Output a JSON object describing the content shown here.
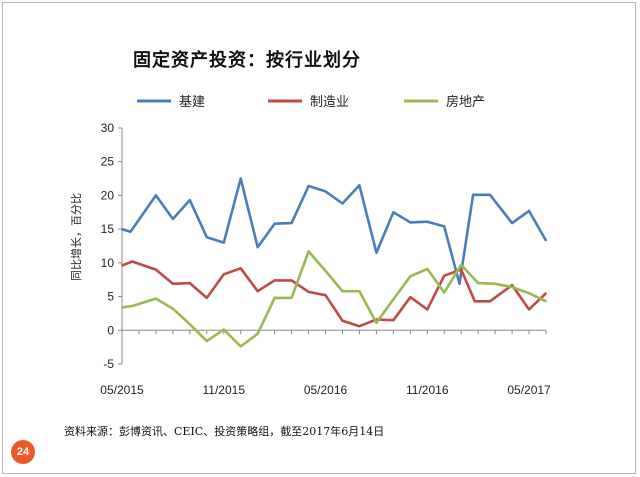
{
  "page_number": "24",
  "source_note": "资料来源：彭博资讯、CEIC、投资策略组，截至2017年6月14日",
  "colors": {
    "badge": "#e9592c",
    "axis": "#888888"
  },
  "chart_data": {
    "type": "line",
    "title": "固定资产投资：按行业划分",
    "ylabel": "同比增长，百分比",
    "xlabel": "",
    "ylim": [
      -5,
      30
    ],
    "yticks": [
      -5,
      0,
      5,
      10,
      15,
      20,
      25,
      30
    ],
    "x": [
      "05/2015",
      "06/2015",
      "07/2015",
      "08/2015",
      "09/2015",
      "10/2015",
      "11/2015",
      "12/2015",
      "01/2016",
      "02/2016",
      "03/2016",
      "04/2016",
      "05/2016",
      "06/2016",
      "07/2016",
      "08/2016",
      "09/2016",
      "10/2016",
      "11/2016",
      "12/2016",
      "01/2017",
      "02/2017",
      "03/2017",
      "04/2017",
      "05/2017"
    ],
    "xtick_labels": [
      {
        "index": 0,
        "label": "05/2015"
      },
      {
        "index": 6,
        "label": "11/2015"
      },
      {
        "index": 12,
        "label": "05/2016"
      },
      {
        "index": 18,
        "label": "11/2016"
      },
      {
        "index": 24,
        "label": "05/2017"
      }
    ],
    "legend_position": "top",
    "series": [
      {
        "name": "基建",
        "color": "#4a7ebb",
        "points": [
          [
            0,
            15.0
          ],
          [
            0.5,
            14.6
          ],
          [
            2,
            20.0
          ],
          [
            3,
            16.5
          ],
          [
            4,
            19.3
          ],
          [
            5,
            13.8
          ],
          [
            6,
            13.0
          ],
          [
            7,
            22.5
          ],
          [
            8,
            12.3
          ],
          [
            9,
            15.8
          ],
          [
            10,
            15.9
          ],
          [
            11,
            21.4
          ],
          [
            12,
            20.6
          ],
          [
            13,
            18.8
          ],
          [
            14,
            21.5
          ],
          [
            15,
            11.5
          ],
          [
            16,
            17.5
          ],
          [
            17,
            16.0
          ],
          [
            18,
            16.1
          ],
          [
            19,
            15.4
          ],
          [
            19.9,
            6.9
          ],
          [
            20.7,
            20.1
          ],
          [
            21.7,
            20.1
          ],
          [
            23,
            15.9
          ],
          [
            24,
            17.7
          ],
          [
            25,
            13.3
          ]
        ]
      },
      {
        "name": "制造业",
        "color": "#be4b48",
        "points": [
          [
            0,
            9.6
          ],
          [
            0.6,
            10.2
          ],
          [
            2,
            9.0
          ],
          [
            3,
            6.9
          ],
          [
            4,
            7.0
          ],
          [
            5,
            4.8
          ],
          [
            6,
            8.3
          ],
          [
            7,
            9.2
          ],
          [
            8,
            5.8
          ],
          [
            9,
            7.4
          ],
          [
            10,
            7.4
          ],
          [
            11,
            5.7
          ],
          [
            12,
            5.2
          ],
          [
            13,
            1.4
          ],
          [
            14,
            0.6
          ],
          [
            15,
            1.6
          ],
          [
            16,
            1.5
          ],
          [
            17,
            4.9
          ],
          [
            18,
            3.1
          ],
          [
            19,
            8.1
          ],
          [
            20,
            9.0
          ],
          [
            20.8,
            4.3
          ],
          [
            21.7,
            4.3
          ],
          [
            23,
            6.7
          ],
          [
            24,
            3.1
          ],
          [
            25,
            5.5
          ]
        ]
      },
      {
        "name": "房地产",
        "color": "#98b954",
        "points": [
          [
            0,
            3.4
          ],
          [
            0.6,
            3.6
          ],
          [
            2,
            4.7
          ],
          [
            3,
            3.2
          ],
          [
            4,
            0.9
          ],
          [
            5,
            -1.6
          ],
          [
            6,
            0.1
          ],
          [
            7,
            -2.4
          ],
          [
            8,
            -0.5
          ],
          [
            9,
            4.8
          ],
          [
            10,
            4.8
          ],
          [
            11,
            11.7
          ],
          [
            12,
            8.8
          ],
          [
            13,
            5.8
          ],
          [
            14,
            5.8
          ],
          [
            15,
            1.1
          ],
          [
            16,
            4.6
          ],
          [
            17,
            8.0
          ],
          [
            18,
            9.1
          ],
          [
            19,
            5.6
          ],
          [
            20,
            9.7
          ],
          [
            21,
            7.0
          ],
          [
            22,
            6.9
          ],
          [
            23,
            6.4
          ],
          [
            24,
            5.5
          ],
          [
            25,
            4.3
          ]
        ]
      }
    ]
  }
}
